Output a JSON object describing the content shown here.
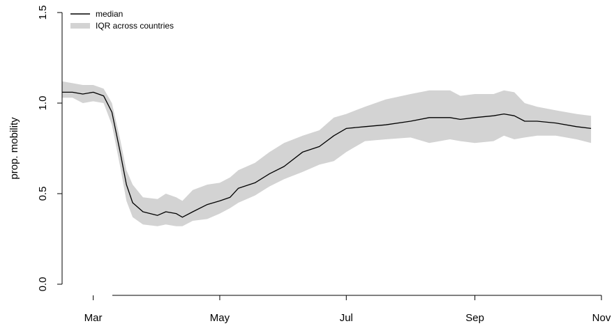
{
  "chart_data": {
    "type": "line",
    "title": "",
    "xlabel": "",
    "ylabel": "prop. mobility",
    "ylim": [
      0,
      1.5
    ],
    "xlim": [
      "2020-02-15",
      "2020-11-01"
    ],
    "yticks": [
      0.0,
      0.5,
      1.0,
      1.5
    ],
    "ytick_labels": [
      "0.0",
      "0.5",
      "1.0",
      "1.5"
    ],
    "xticks": [
      "2020-03-01",
      "2020-05-01",
      "2020-07-01",
      "2020-09-01",
      "2020-11-01"
    ],
    "xtick_labels": [
      "Mar",
      "May",
      "Jul",
      "Sep",
      "Nov"
    ],
    "grid": false,
    "legend_position": "top-left",
    "colors": {
      "median": "#000000",
      "iqr": "#d3d3d3"
    },
    "legend": [
      {
        "label": "median",
        "style": "line"
      },
      {
        "label": "IQR across countries",
        "style": "band"
      }
    ],
    "series": [
      {
        "name": "median",
        "kind": "line",
        "points": [
          [
            "2020-02-15",
            1.06
          ],
          [
            "2020-02-20",
            1.06
          ],
          [
            "2020-02-25",
            1.05
          ],
          [
            "2020-03-01",
            1.06
          ],
          [
            "2020-03-06",
            1.04
          ],
          [
            "2020-03-10",
            0.95
          ],
          [
            "2020-03-14",
            0.73
          ],
          [
            "2020-03-17",
            0.55
          ],
          [
            "2020-03-20",
            0.45
          ],
          [
            "2020-03-25",
            0.4
          ],
          [
            "2020-04-01",
            0.38
          ],
          [
            "2020-04-05",
            0.4
          ],
          [
            "2020-04-10",
            0.39
          ],
          [
            "2020-04-13",
            0.37
          ],
          [
            "2020-04-18",
            0.4
          ],
          [
            "2020-04-25",
            0.44
          ],
          [
            "2020-05-01",
            0.46
          ],
          [
            "2020-05-06",
            0.48
          ],
          [
            "2020-05-10",
            0.53
          ],
          [
            "2020-05-18",
            0.56
          ],
          [
            "2020-05-25",
            0.61
          ],
          [
            "2020-06-01",
            0.65
          ],
          [
            "2020-06-10",
            0.73
          ],
          [
            "2020-06-18",
            0.76
          ],
          [
            "2020-06-25",
            0.82
          ],
          [
            "2020-07-01",
            0.86
          ],
          [
            "2020-07-10",
            0.87
          ],
          [
            "2020-07-20",
            0.88
          ],
          [
            "2020-08-01",
            0.9
          ],
          [
            "2020-08-10",
            0.92
          ],
          [
            "2020-08-20",
            0.92
          ],
          [
            "2020-08-25",
            0.91
          ],
          [
            "2020-09-01",
            0.92
          ],
          [
            "2020-09-10",
            0.93
          ],
          [
            "2020-09-15",
            0.94
          ],
          [
            "2020-09-20",
            0.93
          ],
          [
            "2020-09-25",
            0.9
          ],
          [
            "2020-10-01",
            0.9
          ],
          [
            "2020-10-10",
            0.89
          ],
          [
            "2020-10-20",
            0.87
          ],
          [
            "2020-10-27",
            0.86
          ]
        ]
      },
      {
        "name": "IQR across countries",
        "kind": "band",
        "points": [
          [
            "2020-02-15",
            1.03,
            1.12
          ],
          [
            "2020-02-20",
            1.03,
            1.11
          ],
          [
            "2020-02-25",
            1.0,
            1.1
          ],
          [
            "2020-03-01",
            1.01,
            1.1
          ],
          [
            "2020-03-06",
            1.0,
            1.08
          ],
          [
            "2020-03-10",
            0.88,
            1.0
          ],
          [
            "2020-03-14",
            0.65,
            0.8
          ],
          [
            "2020-03-17",
            0.46,
            0.63
          ],
          [
            "2020-03-20",
            0.37,
            0.55
          ],
          [
            "2020-03-25",
            0.33,
            0.48
          ],
          [
            "2020-04-01",
            0.32,
            0.47
          ],
          [
            "2020-04-05",
            0.33,
            0.5
          ],
          [
            "2020-04-10",
            0.32,
            0.48
          ],
          [
            "2020-04-13",
            0.32,
            0.46
          ],
          [
            "2020-04-18",
            0.35,
            0.52
          ],
          [
            "2020-04-25",
            0.36,
            0.55
          ],
          [
            "2020-05-01",
            0.39,
            0.56
          ],
          [
            "2020-05-06",
            0.42,
            0.59
          ],
          [
            "2020-05-10",
            0.45,
            0.63
          ],
          [
            "2020-05-18",
            0.49,
            0.67
          ],
          [
            "2020-05-25",
            0.54,
            0.73
          ],
          [
            "2020-06-01",
            0.58,
            0.78
          ],
          [
            "2020-06-10",
            0.62,
            0.82
          ],
          [
            "2020-06-18",
            0.66,
            0.85
          ],
          [
            "2020-06-25",
            0.68,
            0.92
          ],
          [
            "2020-07-01",
            0.73,
            0.94
          ],
          [
            "2020-07-10",
            0.79,
            0.98
          ],
          [
            "2020-07-20",
            0.8,
            1.02
          ],
          [
            "2020-08-01",
            0.81,
            1.05
          ],
          [
            "2020-08-10",
            0.78,
            1.07
          ],
          [
            "2020-08-20",
            0.8,
            1.07
          ],
          [
            "2020-08-25",
            0.79,
            1.04
          ],
          [
            "2020-09-01",
            0.78,
            1.05
          ],
          [
            "2020-09-10",
            0.79,
            1.05
          ],
          [
            "2020-09-15",
            0.82,
            1.07
          ],
          [
            "2020-09-20",
            0.8,
            1.06
          ],
          [
            "2020-09-25",
            0.81,
            1.0
          ],
          [
            "2020-10-01",
            0.82,
            0.98
          ],
          [
            "2020-10-10",
            0.82,
            0.96
          ],
          [
            "2020-10-20",
            0.8,
            0.94
          ],
          [
            "2020-10-27",
            0.78,
            0.93
          ]
        ]
      }
    ]
  }
}
